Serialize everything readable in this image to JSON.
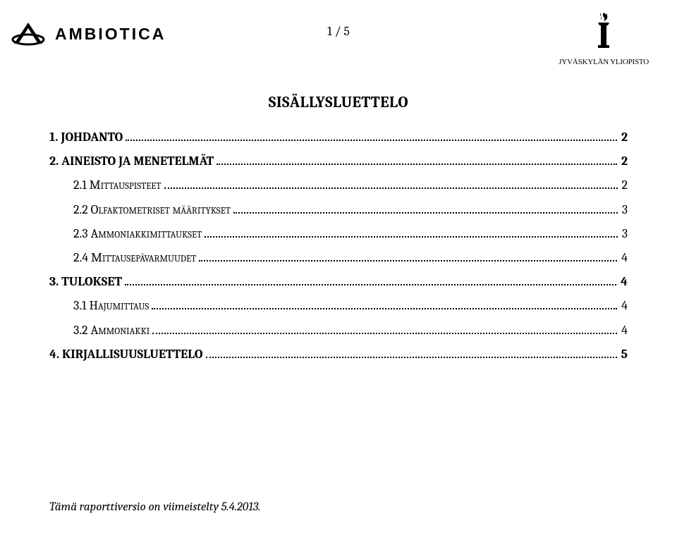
{
  "header": {
    "logo_text": "AMBIOTICA",
    "page_indicator": "1 / 5",
    "university_label": "JYVÄSKYLÄN YLIOPISTO"
  },
  "toc": {
    "title": "SISÄLLYSLUETTELO",
    "items": [
      {
        "label": "1. JOHDANTO",
        "page": "2",
        "level": "head"
      },
      {
        "label": "2. AINEISTO JA MENETELMÄT",
        "page": "2",
        "level": "head"
      },
      {
        "label": "2.1 Mittauspisteet",
        "page": "2",
        "level": "sub"
      },
      {
        "label": "2.2 Olfaktometriset määritykset",
        "page": "3",
        "level": "sub"
      },
      {
        "label": "2.3 Ammoniakkimittaukset",
        "page": "3",
        "level": "sub"
      },
      {
        "label": "2.4 Mittausepävarmuudet",
        "page": "4",
        "level": "sub"
      },
      {
        "label": "3. TULOKSET",
        "page": "4",
        "level": "head"
      },
      {
        "label": "3.1 Hajumittaus",
        "page": "4",
        "level": "sub"
      },
      {
        "label": "3.2 Ammoniakki",
        "page": "4",
        "level": "sub"
      },
      {
        "label": "4. KIRJALLISUUSLUETTELO",
        "page": "5",
        "level": "head"
      }
    ]
  },
  "footer": {
    "note": "Tämä raporttiversio on viimeistelty 5.4.2013."
  },
  "colors": {
    "text": "#000000",
    "background": "#ffffff",
    "dot": "#000000"
  }
}
